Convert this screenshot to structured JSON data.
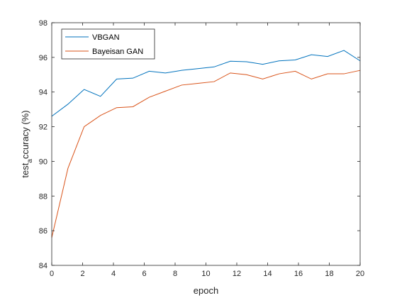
{
  "chart_data": {
    "type": "line",
    "xlabel": "epoch",
    "ylabel_main": "test",
    "ylabel_sub": "a",
    "ylabel_rest": "ccuracy (%)",
    "xlim": [
      0,
      20
    ],
    "ylim": [
      84,
      98
    ],
    "xticks": [
      0,
      2,
      4,
      6,
      8,
      10,
      12,
      14,
      16,
      18,
      20
    ],
    "yticks": [
      84,
      86,
      88,
      90,
      92,
      94,
      96,
      98
    ],
    "grid": false,
    "legend_position": "top-left",
    "series": [
      {
        "name": "VBGAN",
        "color": "#0072BD",
        "x": [
          0,
          1.05,
          2.1,
          3.16,
          4.21,
          5.26,
          6.32,
          7.37,
          8.42,
          9.47,
          10.53,
          11.58,
          12.63,
          13.68,
          14.74,
          15.79,
          16.84,
          17.89,
          18.95,
          20
        ],
        "y": [
          92.6,
          93.3,
          94.15,
          93.75,
          94.75,
          94.8,
          95.2,
          95.1,
          95.25,
          95.35,
          95.45,
          95.78,
          95.75,
          95.6,
          95.8,
          95.85,
          96.15,
          96.05,
          96.4,
          95.8
        ]
      },
      {
        "name": "Bayeisan GAN",
        "color": "#D95319",
        "x": [
          0,
          1.05,
          2.1,
          3.16,
          4.21,
          5.26,
          6.32,
          7.37,
          8.42,
          9.47,
          10.53,
          11.58,
          12.63,
          13.68,
          14.74,
          15.79,
          16.84,
          17.89,
          18.95,
          20
        ],
        "y": [
          85.6,
          89.6,
          92.0,
          92.65,
          93.1,
          93.15,
          93.7,
          94.05,
          94.4,
          94.5,
          94.6,
          95.1,
          95.0,
          94.75,
          95.05,
          95.2,
          94.75,
          95.05,
          95.05,
          95.25
        ]
      }
    ]
  }
}
